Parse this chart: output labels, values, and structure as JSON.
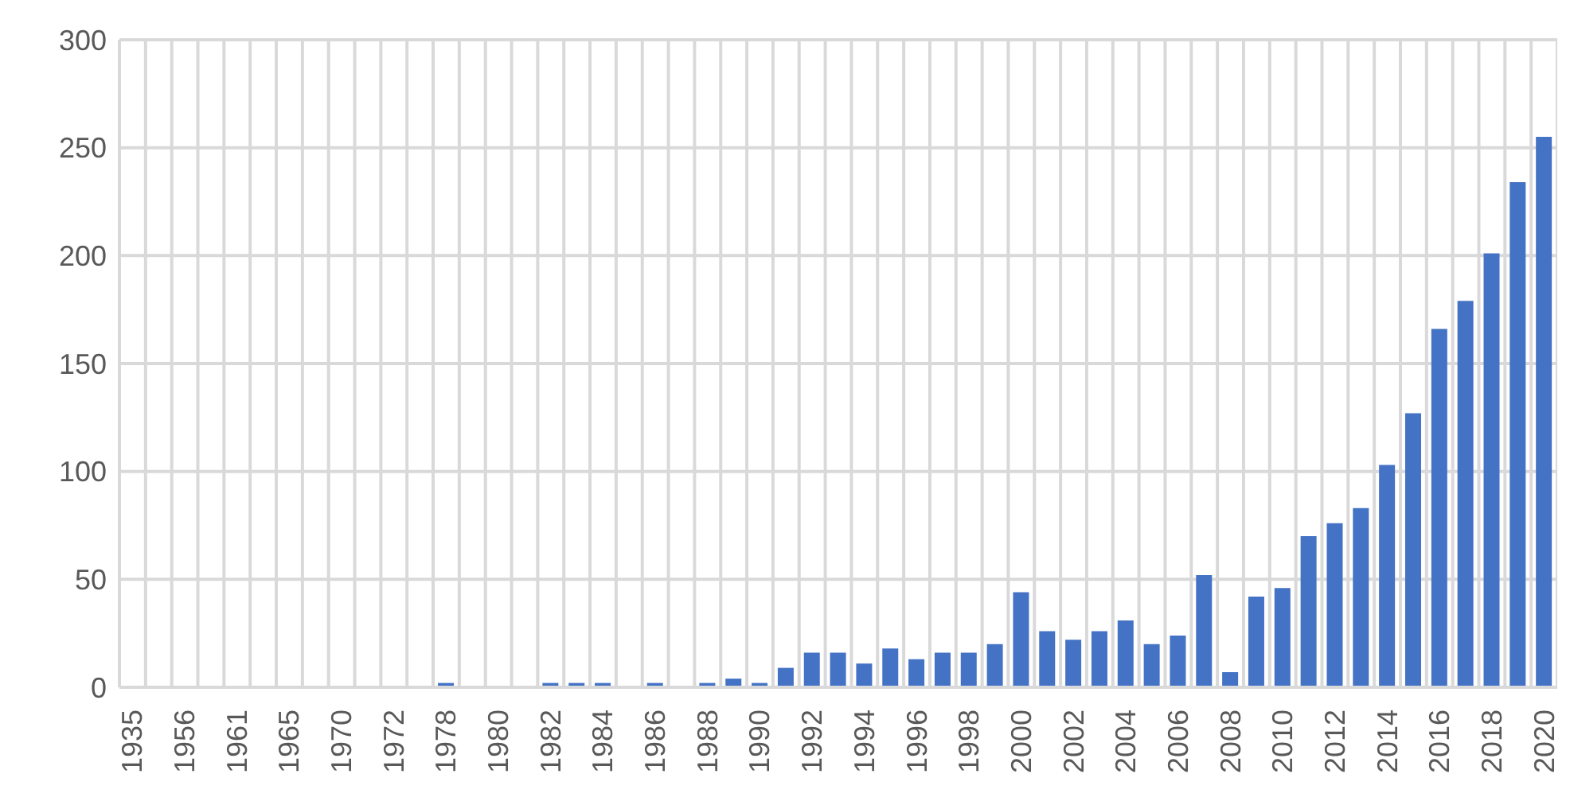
{
  "chart_data": {
    "type": "bar",
    "categories": [
      "1935",
      null,
      "1956",
      null,
      "1961",
      null,
      "1965",
      null,
      "1970",
      null,
      "1972",
      null,
      "1978",
      null,
      "1980",
      null,
      "1982",
      null,
      "1984",
      null,
      "1986",
      null,
      "1988",
      null,
      "1990",
      null,
      "1992",
      null,
      "1994",
      null,
      "1996",
      null,
      "1998",
      null,
      "2000",
      null,
      "2002",
      null,
      "2004",
      null,
      "2006",
      null,
      "2008",
      null,
      "2010",
      null,
      "2012",
      null,
      "2014",
      null,
      "2016",
      null,
      "2018",
      null,
      "2020"
    ],
    "values": [
      0,
      0,
      0,
      0,
      0,
      0,
      0,
      0,
      0,
      0,
      0,
      0,
      2,
      0,
      0,
      0,
      2,
      2,
      2,
      0,
      2,
      0,
      2,
      4,
      2,
      9,
      16,
      16,
      11,
      18,
      13,
      16,
      16,
      20,
      44,
      26,
      22,
      26,
      31,
      20,
      24,
      52,
      7,
      42,
      46,
      70,
      76,
      83,
      103,
      127,
      166,
      179,
      201,
      234,
      255
    ],
    "color": "#4472c4",
    "ylim": [
      0,
      300
    ],
    "yticks": [
      0,
      50,
      100,
      150,
      200,
      250,
      300
    ],
    "grid": true
  }
}
